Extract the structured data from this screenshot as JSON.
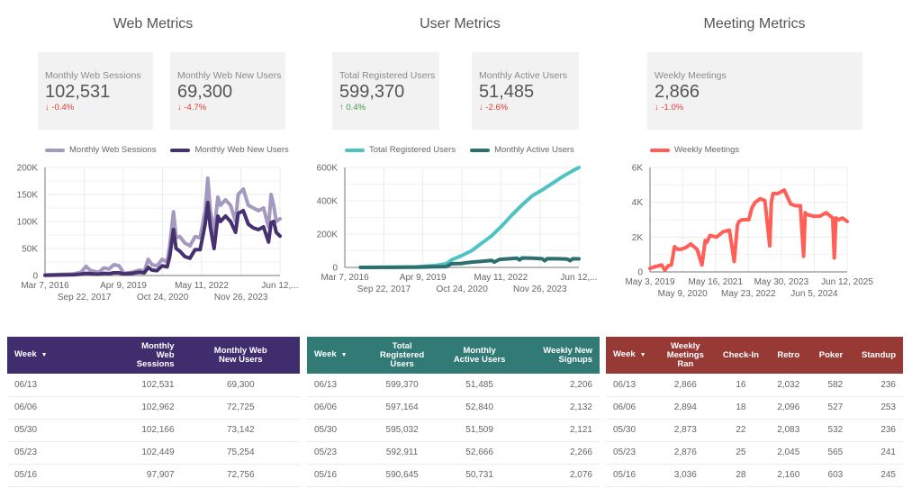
{
  "sections": {
    "web": {
      "title": "Web Metrics"
    },
    "user": {
      "title": "User Metrics"
    },
    "meeting": {
      "title": "Meeting Metrics"
    }
  },
  "colors": {
    "web_primary": "#a499c1",
    "web_secondary": "#47306f",
    "user_primary": "#4fc3c4",
    "user_secondary": "#2d6e6e",
    "meeting_primary": "#ff5f57",
    "web_table_header": "#3f2d6e",
    "user_table_header": "#327a76",
    "meeting_table_header": "#973a35",
    "delta_down": "#e53935",
    "delta_up": "#3c9a46"
  },
  "scorecards": [
    {
      "label": "Monthly Web Sessions",
      "value": "102,531",
      "delta": "-0.4%",
      "direction": "down",
      "arrow": "↓"
    },
    {
      "label": "Monthly Web New Users",
      "value": "69,300",
      "delta": "-4.7%",
      "direction": "down",
      "arrow": "↓"
    },
    {
      "label": "Total Registered Users",
      "value": "599,370",
      "delta": "0.4%",
      "direction": "up",
      "arrow": "↑"
    },
    {
      "label": "Monthly Active Users",
      "value": "51,485",
      "delta": "-2.6%",
      "direction": "down",
      "arrow": "↓"
    },
    {
      "label": "Weekly Meetings",
      "value": "2,866",
      "delta": "-1.0%",
      "direction": "down",
      "arrow": "↓"
    }
  ],
  "chart_data": [
    {
      "type": "line",
      "title": "",
      "xlabel": "",
      "ylabel": "",
      "grid": true,
      "legend": "top",
      "ylim": [
        0,
        200000
      ],
      "yticks": [
        0,
        50000,
        100000,
        150000,
        200000
      ],
      "ytick_labels": [
        "0",
        "50K",
        "100K",
        "150K",
        "200K"
      ],
      "xlim": [
        2016.18,
        2025.45
      ],
      "xtick_labels_row1": [
        "Mar 7, 2016",
        "Apr 9, 2019",
        "May 11, 2022",
        "Jun 12,..."
      ],
      "xtick_labels_row2": [
        "Sep 22, 2017",
        "Oct 24, 2020",
        "Nov 26, 2023"
      ],
      "xticks_row1": [
        2016.18,
        2019.27,
        2022.36,
        2025.45
      ],
      "xticks_row2": [
        2017.73,
        2020.82,
        2023.91
      ],
      "series": [
        {
          "name": "Monthly Web Sessions",
          "color": "#a499c1",
          "x": [
            2016.18,
            2016.8,
            2017.3,
            2017.6,
            2017.8,
            2017.95,
            2018.1,
            2018.3,
            2018.5,
            2018.7,
            2018.9,
            2019.1,
            2019.3,
            2019.6,
            2019.9,
            2020.1,
            2020.25,
            2020.4,
            2020.6,
            2020.8,
            2021.0,
            2021.1,
            2021.25,
            2021.35,
            2021.5,
            2021.7,
            2021.9,
            2022.1,
            2022.3,
            2022.5,
            2022.6,
            2022.7,
            2022.85,
            2023.0,
            2023.1,
            2023.3,
            2023.5,
            2023.7,
            2023.8,
            2024.0,
            2024.2,
            2024.4,
            2024.6,
            2024.8,
            2025.0,
            2025.1,
            2025.2,
            2025.3,
            2025.45
          ],
          "y": [
            1000,
            2000,
            3000,
            6000,
            17000,
            10000,
            8000,
            6000,
            14000,
            12000,
            20000,
            18000,
            4000,
            6000,
            10000,
            8000,
            30000,
            20000,
            18000,
            30000,
            25000,
            55000,
            118000,
            70000,
            72000,
            60000,
            55000,
            72000,
            70000,
            120000,
            180000,
            120000,
            80000,
            145000,
            130000,
            140000,
            130000,
            100000,
            150000,
            160000,
            130000,
            125000,
            120000,
            125000,
            90000,
            150000,
            130000,
            100000,
            105000
          ]
        },
        {
          "name": "Monthly Web New Users",
          "color": "#47306f",
          "x": [
            2016.18,
            2016.8,
            2017.3,
            2017.6,
            2017.8,
            2017.95,
            2018.1,
            2018.3,
            2018.5,
            2018.7,
            2018.9,
            2019.1,
            2019.3,
            2019.6,
            2019.9,
            2020.1,
            2020.25,
            2020.4,
            2020.6,
            2020.8,
            2021.0,
            2021.1,
            2021.25,
            2021.35,
            2021.5,
            2021.7,
            2021.9,
            2022.1,
            2022.3,
            2022.5,
            2022.6,
            2022.7,
            2022.85,
            2023.0,
            2023.1,
            2023.3,
            2023.5,
            2023.7,
            2023.8,
            2024.0,
            2024.2,
            2024.4,
            2024.6,
            2024.8,
            2025.0,
            2025.1,
            2025.2,
            2025.3,
            2025.45
          ],
          "y": [
            500,
            1000,
            1500,
            2500,
            4000,
            3500,
            3000,
            2500,
            4000,
            3500,
            5000,
            5000,
            3000,
            4000,
            6000,
            5000,
            15000,
            10000,
            9000,
            18000,
            16000,
            35000,
            85000,
            50000,
            45000,
            35000,
            32000,
            48000,
            48000,
            95000,
            135000,
            90000,
            50000,
            110000,
            100000,
            110000,
            100000,
            80000,
            115000,
            120000,
            95000,
            88000,
            85000,
            90000,
            62000,
            98000,
            100000,
            80000,
            73000
          ]
        }
      ]
    },
    {
      "type": "line",
      "title": "",
      "xlabel": "",
      "ylabel": "",
      "grid": true,
      "legend": "top",
      "ylim": [
        0,
        600000
      ],
      "yticks": [
        0,
        200000,
        400000,
        600000
      ],
      "ytick_labels": [
        "0",
        "200K",
        "400K",
        "600K"
      ],
      "xlim": [
        2016.18,
        2025.45
      ],
      "xtick_labels_row1": [
        "Mar 7, 2016",
        "Apr 9, 2019",
        "May 11, 2022",
        "Jun 12,..."
      ],
      "xtick_labels_row2": [
        "Sep 22, 2017",
        "Oct 24, 2020",
        "Nov 26, 2023"
      ],
      "xticks_row1": [
        2016.18,
        2019.27,
        2022.36,
        2025.45
      ],
      "xticks_row2": [
        2017.73,
        2020.82,
        2023.91
      ],
      "series": [
        {
          "name": "Total Registered Users",
          "color": "#4fc3c4",
          "x": [
            2016.8,
            2018.0,
            2019.0,
            2019.8,
            2020.2,
            2020.4,
            2020.8,
            2021.2,
            2021.6,
            2022.0,
            2022.4,
            2022.8,
            2023.2,
            2023.6,
            2024.0,
            2024.4,
            2024.8,
            2025.2,
            2025.45
          ],
          "y": [
            0,
            1000,
            3000,
            12000,
            22000,
            45000,
            70000,
            100000,
            145000,
            190000,
            250000,
            315000,
            375000,
            430000,
            465000,
            505000,
            545000,
            580000,
            599370
          ]
        },
        {
          "name": "Monthly Active Users",
          "color": "#2d6e6e",
          "x": [
            2016.8,
            2018.0,
            2019.0,
            2019.8,
            2020.2,
            2020.4,
            2020.8,
            2021.0,
            2021.2,
            2021.6,
            2022.0,
            2022.1,
            2022.3,
            2022.7,
            2023.0,
            2023.1,
            2023.2,
            2023.6,
            2024.0,
            2024.1,
            2024.2,
            2024.6,
            2025.0,
            2025.1,
            2025.2,
            2025.45
          ],
          "y": [
            0,
            500,
            1500,
            4000,
            5000,
            22000,
            24000,
            28000,
            32000,
            36000,
            42000,
            32000,
            48000,
            52000,
            55000,
            45000,
            57000,
            55000,
            52000,
            40000,
            53000,
            52000,
            50000,
            40000,
            52000,
            51485
          ]
        }
      ]
    },
    {
      "type": "line",
      "title": "",
      "xlabel": "",
      "ylabel": "",
      "grid": true,
      "legend": "top-left",
      "ylim": [
        0,
        6000
      ],
      "yticks": [
        0,
        2000,
        4000,
        6000
      ],
      "ytick_labels": [
        "0",
        "2K",
        "4K",
        "6K"
      ],
      "xlim": [
        2019.34,
        2025.45
      ],
      "xtick_labels_row1": [
        "May 3, 2019",
        "May 16, 2021",
        "May 30, 2023",
        "Jun 12, 2025"
      ],
      "xtick_labels_row2": [
        "May 9, 2020",
        "May 23, 2022",
        "Jun 5, 2024"
      ],
      "xticks_row1": [
        2019.34,
        2021.37,
        2023.41,
        2025.45
      ],
      "xticks_row2": [
        2020.35,
        2022.39,
        2024.43
      ],
      "series": [
        {
          "name": "Weekly Meetings",
          "color": "#ff5f57",
          "x": [
            2019.34,
            2019.5,
            2019.7,
            2019.8,
            2019.9,
            2020.0,
            2020.1,
            2020.2,
            2020.3,
            2020.45,
            2020.6,
            2020.8,
            2020.95,
            2021.05,
            2021.1,
            2021.2,
            2021.4,
            2021.6,
            2021.8,
            2021.95,
            2022.05,
            2022.1,
            2022.2,
            2022.4,
            2022.5,
            2022.6,
            2022.75,
            2022.9,
            2023.05,
            2023.1,
            2023.15,
            2023.3,
            2023.5,
            2023.6,
            2023.7,
            2023.85,
            2024.0,
            2024.1,
            2024.15,
            2024.2,
            2024.4,
            2024.6,
            2024.8,
            2025.0,
            2025.05,
            2025.1,
            2025.2,
            2025.3,
            2025.45
          ],
          "y": [
            200,
            300,
            400,
            100,
            350,
            400,
            1450,
            1300,
            1300,
            1400,
            1600,
            1300,
            400,
            1800,
            1700,
            2100,
            2000,
            2300,
            2400,
            600,
            2700,
            2900,
            3000,
            3000,
            3700,
            4000,
            4200,
            4100,
            1500,
            4000,
            4500,
            4500,
            4700,
            4300,
            3900,
            3800,
            3800,
            900,
            3400,
            3300,
            3200,
            3200,
            3400,
            3100,
            800,
            3100,
            3000,
            3100,
            2900
          ]
        }
      ]
    }
  ],
  "tables": {
    "web": {
      "columns": [
        "Week",
        "Monthly Web Sessions",
        "Monthly Web New Users"
      ],
      "column_lines": [
        [
          "Week"
        ],
        [
          "Monthly",
          "Web",
          "Sessions"
        ],
        [
          "Monthly Web",
          "New Users"
        ]
      ],
      "sort_icon": "▼",
      "rows": [
        [
          "06/13",
          "102,531",
          "69,300"
        ],
        [
          "06/06",
          "102,962",
          "72,725"
        ],
        [
          "05/30",
          "102,166",
          "73,142"
        ],
        [
          "05/23",
          "102,449",
          "75,254"
        ],
        [
          "05/16",
          "97,907",
          "72,756"
        ]
      ]
    },
    "user": {
      "columns": [
        "Week",
        "Total Registered Users",
        "Monthly Active Users",
        "Weekly New Signups"
      ],
      "column_lines": [
        [
          "Week"
        ],
        [
          "Total",
          "Registered",
          "Users"
        ],
        [
          "Monthly",
          "Active Users"
        ],
        [
          "Weekly New",
          "Signups"
        ]
      ],
      "sort_icon": "▼",
      "rows": [
        [
          "06/13",
          "599,370",
          "51,485",
          "2,206"
        ],
        [
          "06/06",
          "597,164",
          "52,840",
          "2,132"
        ],
        [
          "05/30",
          "595,032",
          "51,509",
          "2,121"
        ],
        [
          "05/23",
          "592,911",
          "52,666",
          "2,266"
        ],
        [
          "05/16",
          "590,645",
          "50,731",
          "2,076"
        ]
      ]
    },
    "meeting": {
      "columns": [
        "Week",
        "Weekly Meetings Ran",
        "Check-In",
        "Retro",
        "Poker",
        "Standup"
      ],
      "column_lines": [
        [
          "Week"
        ],
        [
          "Weekly",
          "Meetings",
          "Ran"
        ],
        [
          "Check-In"
        ],
        [
          "Retro"
        ],
        [
          "Poker"
        ],
        [
          "Standup"
        ]
      ],
      "sort_icon": "▼",
      "rows": [
        [
          "06/13",
          "2,866",
          "16",
          "2,032",
          "582",
          "236"
        ],
        [
          "06/06",
          "2,894",
          "18",
          "2,096",
          "527",
          "253"
        ],
        [
          "05/30",
          "2,873",
          "22",
          "2,083",
          "532",
          "236"
        ],
        [
          "05/23",
          "2,876",
          "25",
          "2,045",
          "565",
          "241"
        ],
        [
          "05/16",
          "3,036",
          "28",
          "2,160",
          "603",
          "245"
        ]
      ]
    }
  }
}
